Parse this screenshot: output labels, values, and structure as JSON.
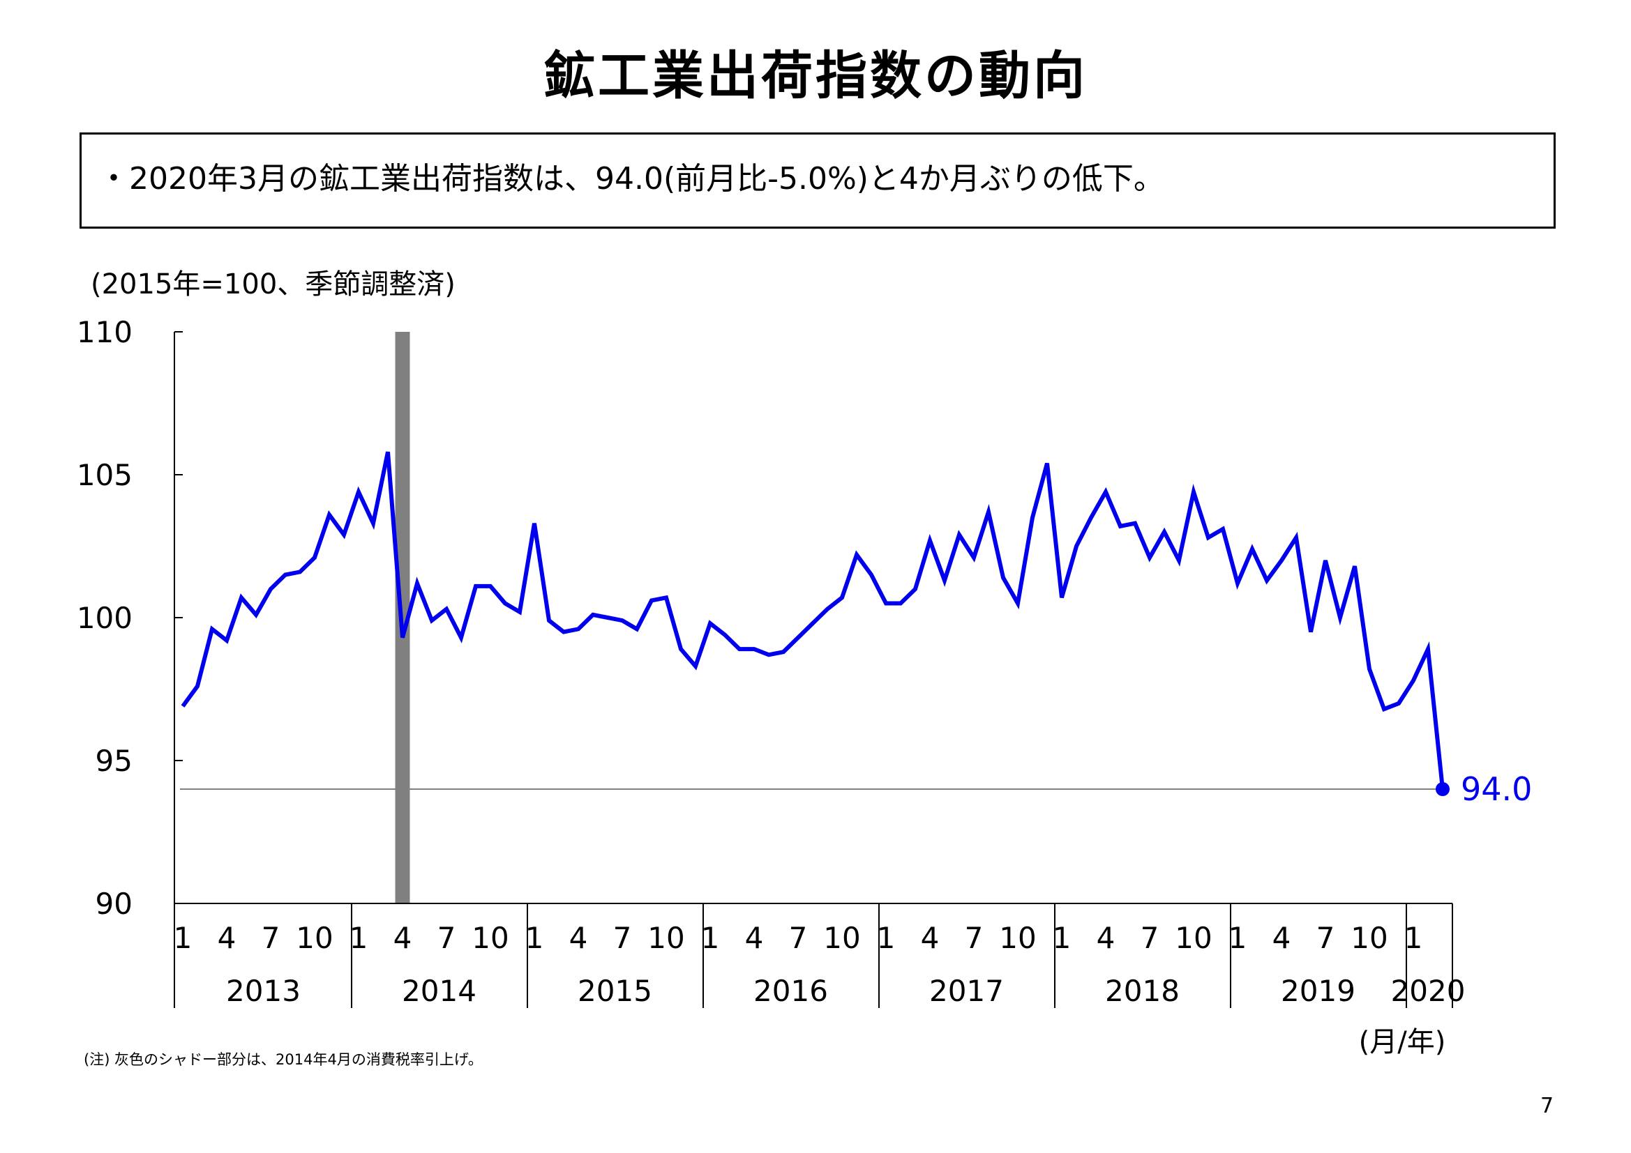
{
  "page": {
    "title": "鉱工業出荷指数の動向",
    "summary": "・2020年3月の鉱工業出荷指数は、94.0(前月比-5.0%)と4か月ぶりの低下。",
    "unit_label": "(2015年=100、季節調整済)",
    "note": "(注) 灰色のシャドー部分は、2014年4月の消費税率引上げ。",
    "page_number": "7",
    "xaxis_unit": "(月/年)"
  },
  "chart_data": {
    "type": "line",
    "title": "",
    "ylim": [
      90,
      110
    ],
    "yticks": [
      "90",
      "95",
      "100",
      "105",
      "110"
    ],
    "x_start": "2013-01",
    "x_end": "2020-03",
    "month_tick_labels": [
      "1",
      "4",
      "7",
      "10"
    ],
    "years": [
      "2013",
      "2014",
      "2015",
      "2016",
      "2017",
      "2018",
      "2019",
      "2020"
    ],
    "final_year_month_ticks": [
      "1"
    ],
    "series": [
      {
        "color": "#0000ee",
        "values": [
          96.9,
          97.6,
          99.6,
          99.2,
          100.7,
          100.1,
          101.0,
          101.5,
          101.6,
          102.1,
          103.6,
          102.9,
          104.4,
          103.3,
          105.8,
          99.3,
          101.2,
          99.9,
          100.3,
          99.3,
          101.1,
          101.1,
          100.5,
          100.2,
          103.3,
          99.9,
          99.5,
          99.6,
          100.1,
          100.0,
          99.9,
          99.6,
          100.6,
          100.7,
          98.9,
          98.3,
          99.8,
          99.4,
          98.9,
          98.9,
          98.7,
          98.8,
          99.3,
          99.8,
          100.3,
          100.7,
          102.2,
          101.5,
          100.5,
          100.5,
          101.0,
          102.7,
          101.3,
          102.9,
          102.1,
          103.7,
          101.4,
          100.5,
          103.5,
          105.4,
          100.7,
          102.5,
          103.5,
          104.4,
          103.2,
          103.3,
          102.1,
          103.0,
          102.0,
          104.4,
          102.8,
          103.1,
          101.2,
          102.4,
          101.3,
          102.0,
          102.8,
          99.5,
          102.0,
          100.0,
          101.8,
          98.2,
          96.8,
          97.0,
          97.8,
          98.9,
          94.0
        ]
      }
    ],
    "reference_line_value": 94.0,
    "last_point_label": "94.0",
    "shade_period": "2014-04"
  }
}
